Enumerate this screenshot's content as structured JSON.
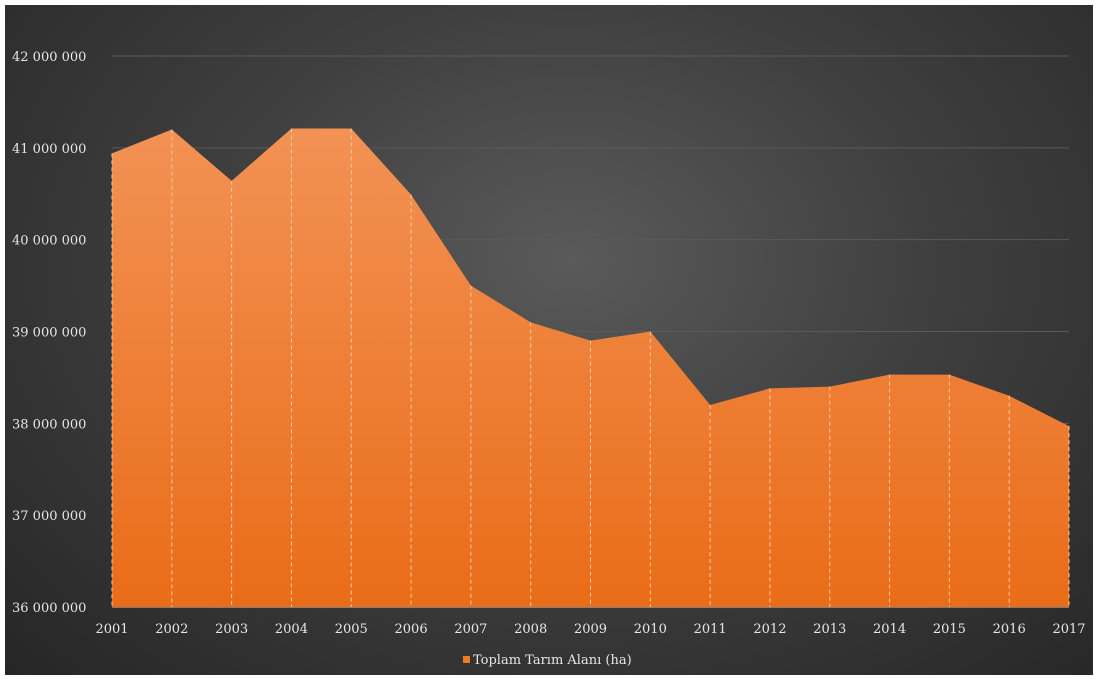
{
  "chart_data": {
    "type": "area",
    "x": [
      "2001",
      "2002",
      "2003",
      "2004",
      "2005",
      "2006",
      "2007",
      "2008",
      "2009",
      "2010",
      "2011",
      "2012",
      "2013",
      "2014",
      "2015",
      "2016",
      "2017"
    ],
    "series": [
      {
        "name": "Toplam Tarım Alanı (ha)",
        "values": [
          40940000,
          41200000,
          40640000,
          41210000,
          41210000,
          40490000,
          39500000,
          39100000,
          38900000,
          39000000,
          38200000,
          38380000,
          38400000,
          38530000,
          38530000,
          38300000,
          37970000
        ],
        "color": "#f07c22"
      }
    ],
    "ylim": [
      36000000,
      42000000
    ],
    "yticks": [
      36000000,
      37000000,
      38000000,
      39000000,
      40000000,
      41000000,
      42000000
    ],
    "ytick_labels": [
      "36 000 000",
      "37 000 000",
      "38 000 000",
      "39 000 000",
      "40 000 000",
      "41 000 000",
      "42 000 000"
    ],
    "title": "",
    "xlabel": "",
    "ylabel": "",
    "grid": true,
    "legend": "bottom-center",
    "colors": {
      "background": "#3f3f3f",
      "area_top": "#f29255",
      "area_bottom": "#ea6c18",
      "gridline": "#5a5a5a",
      "text": "#e6e6e6"
    }
  }
}
